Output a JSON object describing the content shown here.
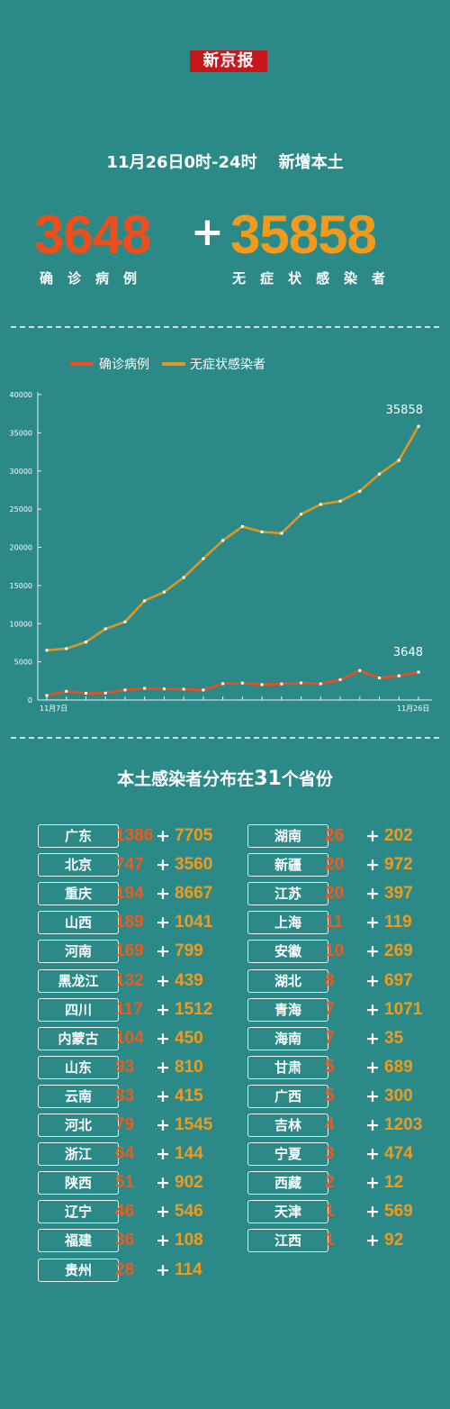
{
  "logo": "新京报",
  "headline": {
    "time": "11月26日0时-24时",
    "label": "新增本土"
  },
  "totals": {
    "confirmed": "3648",
    "plus": "+",
    "asymptomatic": "35858",
    "confirmed_label": "确诊病例",
    "asymptomatic_label": "无症状感染者"
  },
  "colors": {
    "background": "#2b8a88",
    "confirmed": "#ef4e1c",
    "asymptomatic": "#e3961f"
  },
  "chart_data": {
    "type": "line",
    "x": [
      "11月7日",
      "11月8日",
      "11月9日",
      "11月10日",
      "11月11日",
      "11月12日",
      "11月13日",
      "11月14日",
      "11月15日",
      "11月16日",
      "11月17日",
      "11月18日",
      "11月19日",
      "11月20日",
      "11月21日",
      "11月22日",
      "11月23日",
      "11月24日",
      "11月25日",
      "11月26日"
    ],
    "x_tick_labels": [
      "11月7日",
      "11月26日"
    ],
    "series": [
      {
        "name": "确诊病例",
        "values": [
          588,
          1139,
          882,
          912,
          1317,
          1525,
          1457,
          1421,
          1310,
          2141,
          2219,
          2010,
          2103,
          2245,
          2122,
          2658,
          3852,
          2889,
          3162,
          3648
        ]
      },
      {
        "name": "无症状感染者",
        "values": [
          6510,
          6730,
          7593,
          9319,
          10229,
          12995,
          14144,
          16047,
          18511,
          20898,
          22718,
          22020,
          21835,
          24338,
          25624,
          26042,
          27352,
          29596,
          31391,
          35858
        ]
      }
    ],
    "y_ticks": [
      0,
      5000,
      10000,
      15000,
      20000,
      25000,
      30000,
      35000,
      40000
    ],
    "ylim": [
      0,
      40000
    ],
    "end_labels": [
      "35858",
      "3648"
    ],
    "legend": "top-left",
    "grid": false
  },
  "distribution": {
    "title_pre": "本土感染者分布在",
    "title_num": "31",
    "title_post": "个省份",
    "plus": "+",
    "left": [
      {
        "name": "广东",
        "confirmed": "1386",
        "asymptomatic": "7705"
      },
      {
        "name": "北京",
        "confirmed": "747",
        "asymptomatic": "3560"
      },
      {
        "name": "重庆",
        "confirmed": "194",
        "asymptomatic": "8667"
      },
      {
        "name": "山西",
        "confirmed": "189",
        "asymptomatic": "1041"
      },
      {
        "name": "河南",
        "confirmed": "169",
        "asymptomatic": "799"
      },
      {
        "name": "黑龙江",
        "confirmed": "132",
        "asymptomatic": "439"
      },
      {
        "name": "四川",
        "confirmed": "117",
        "asymptomatic": "1512"
      },
      {
        "name": "内蒙古",
        "confirmed": "104",
        "asymptomatic": "450"
      },
      {
        "name": "山东",
        "confirmed": "93",
        "asymptomatic": "810"
      },
      {
        "name": "云南",
        "confirmed": "83",
        "asymptomatic": "415"
      },
      {
        "name": "河北",
        "confirmed": "79",
        "asymptomatic": "1545"
      },
      {
        "name": "浙江",
        "confirmed": "64",
        "asymptomatic": "144"
      },
      {
        "name": "陕西",
        "confirmed": "51",
        "asymptomatic": "902"
      },
      {
        "name": "辽宁",
        "confirmed": "46",
        "asymptomatic": "546"
      },
      {
        "name": "福建",
        "confirmed": "36",
        "asymptomatic": "108"
      },
      {
        "name": "贵州",
        "confirmed": "28",
        "asymptomatic": "114"
      }
    ],
    "right": [
      {
        "name": "湖南",
        "confirmed": "26",
        "asymptomatic": "202"
      },
      {
        "name": "新疆",
        "confirmed": "20",
        "asymptomatic": "972"
      },
      {
        "name": "江苏",
        "confirmed": "20",
        "asymptomatic": "397"
      },
      {
        "name": "上海",
        "confirmed": "11",
        "asymptomatic": "119"
      },
      {
        "name": "安徽",
        "confirmed": "10",
        "asymptomatic": "269"
      },
      {
        "name": "湖北",
        "confirmed": "8",
        "asymptomatic": "697"
      },
      {
        "name": "青海",
        "confirmed": "7",
        "asymptomatic": "1071"
      },
      {
        "name": "海南",
        "confirmed": "7",
        "asymptomatic": "35"
      },
      {
        "name": "甘肃",
        "confirmed": "5",
        "asymptomatic": "689"
      },
      {
        "name": "广西",
        "confirmed": "5",
        "asymptomatic": "300"
      },
      {
        "name": "吉林",
        "confirmed": "4",
        "asymptomatic": "1203"
      },
      {
        "name": "宁夏",
        "confirmed": "3",
        "asymptomatic": "474"
      },
      {
        "name": "西藏",
        "confirmed": "2",
        "asymptomatic": "12"
      },
      {
        "name": "天津",
        "confirmed": "1",
        "asymptomatic": "569"
      },
      {
        "name": "江西",
        "confirmed": "1",
        "asymptomatic": "92"
      }
    ]
  }
}
